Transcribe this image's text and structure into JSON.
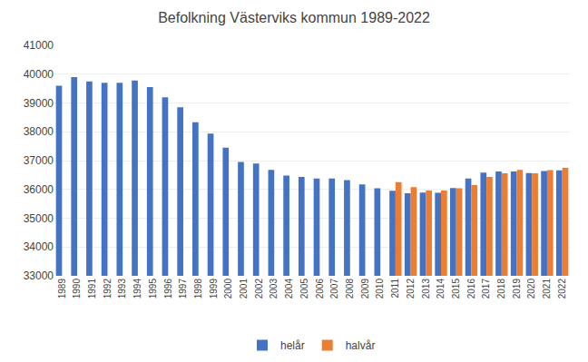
{
  "chart_data": {
    "type": "bar",
    "title": "Befolkning Västerviks kommun 1989-2022",
    "categories": [
      "1989",
      "1990",
      "1991",
      "1992",
      "1993",
      "1994",
      "1995",
      "1996",
      "1997",
      "1998",
      "1999",
      "2000",
      "2001",
      "2002",
      "2003",
      "2004",
      "2005",
      "2006",
      "2007",
      "2008",
      "2009",
      "2010",
      "2011",
      "2012",
      "2013",
      "2014",
      "2015",
      "2016",
      "2017",
      "2018",
      "2019",
      "2020",
      "2021",
      "2022"
    ],
    "series": [
      {
        "name": "helår",
        "color": "#4472c4",
        "values": [
          39600,
          39900,
          39750,
          39700,
          39700,
          39780,
          39550,
          39200,
          38850,
          38330,
          37940,
          37450,
          36950,
          36900,
          36680,
          36480,
          36430,
          36380,
          36380,
          36320,
          36170,
          36040,
          35950,
          35870,
          35890,
          35880,
          36050,
          36380,
          36580,
          36620,
          36620,
          36570,
          36640,
          36660
        ]
      },
      {
        "name": "halvår",
        "color": "#ed7d31",
        "values": [
          null,
          null,
          null,
          null,
          null,
          null,
          null,
          null,
          null,
          null,
          null,
          null,
          null,
          null,
          null,
          null,
          null,
          null,
          null,
          null,
          null,
          null,
          36250,
          36080,
          35960,
          35960,
          36040,
          36150,
          36430,
          36560,
          36680,
          36560,
          36670,
          36750
        ]
      }
    ],
    "ylim": [
      33000,
      41000
    ],
    "yticks": [
      33000,
      34000,
      35000,
      36000,
      37000,
      38000,
      39000,
      40000,
      41000
    ],
    "grid": true,
    "legend": "bottom"
  }
}
